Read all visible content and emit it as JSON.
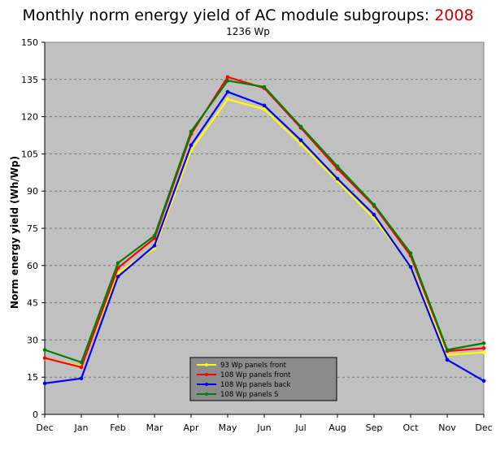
{
  "chart_data": {
    "type": "line",
    "title": "Monthly norm energy yield of AC module subgroups:",
    "title_year": "2008",
    "subtitle": "1236 Wp",
    "xlabel": "",
    "ylabel": "Norm energy yield (Wh/Wp)",
    "categories": [
      "Dec",
      "Jan",
      "Feb",
      "Mar",
      "Apr",
      "May",
      "Jun",
      "Jul",
      "Aug",
      "Sep",
      "Oct",
      "Nov",
      "Dec"
    ],
    "ylim": [
      0,
      150
    ],
    "yticks": [
      0,
      15,
      30,
      45,
      60,
      75,
      90,
      105,
      120,
      135,
      150
    ],
    "grid": true,
    "legend_position": "bottom-center",
    "plot_background": "#c0c0c0",
    "series": [
      {
        "name": "93 Wp panels front",
        "color": "#ffff00",
        "values": [
          22.5,
          19.5,
          57.0,
          67.0,
          106.5,
          127.0,
          123.0,
          109.0,
          94.0,
          79.0,
          60.0,
          24.0,
          25.0
        ]
      },
      {
        "name": "108 Wp panels front",
        "color": "#ff0000",
        "values": [
          22.7,
          19.0,
          59.0,
          71.0,
          113.0,
          136.0,
          131.5,
          115.5,
          99.0,
          84.0,
          64.0,
          25.5,
          26.7
        ]
      },
      {
        "name": "108 Wp panels back",
        "color": "#0000ff",
        "values": [
          12.5,
          14.5,
          55.5,
          68.0,
          108.5,
          130.0,
          124.5,
          110.5,
          95.0,
          80.5,
          59.5,
          22.0,
          13.5
        ]
      },
      {
        "name": "108 Wp panels S",
        "color": "#008000",
        "values": [
          26.0,
          21.0,
          61.0,
          72.0,
          114.0,
          134.5,
          132.0,
          116.0,
          100.0,
          84.5,
          65.0,
          26.0,
          28.7
        ]
      }
    ]
  }
}
